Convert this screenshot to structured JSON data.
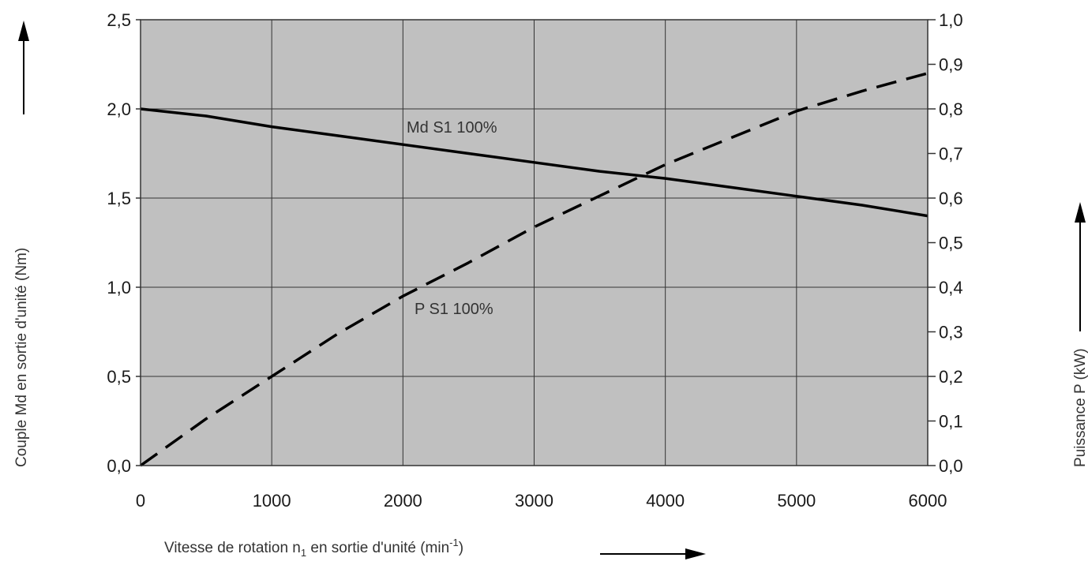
{
  "colors": {
    "plot_background": "#c0c0c0",
    "grid": "#333333",
    "series": "#000000",
    "text": "#1a1a1a"
  },
  "chart_data": {
    "type": "line",
    "x": [
      0,
      500,
      1000,
      1500,
      2000,
      2500,
      3000,
      3500,
      4000,
      4500,
      5000,
      5500,
      6000
    ],
    "xlim": [
      0,
      6000
    ],
    "x_ticks": [
      "0",
      "1000",
      "2000",
      "3000",
      "4000",
      "5000",
      "6000"
    ],
    "ylim_left": [
      0,
      2.5
    ],
    "y_ticks_left": [
      "0,0",
      "0,5",
      "1,0",
      "1,5",
      "2,0",
      "2,5"
    ],
    "ylim_right": [
      0,
      1.0
    ],
    "y_ticks_right": [
      "0,0",
      "0,1",
      "0,2",
      "0,3",
      "0,4",
      "0,5",
      "0,6",
      "0,7",
      "0,8",
      "0,9",
      "1,0"
    ],
    "xlabel": {
      "prefix": "Vitesse de rotation n",
      "sub": "1",
      "middle": " en sortie d'unité (min",
      "sup": "-1",
      "suffix": ")"
    },
    "ylabel_left": "Couple Md en sortie d'unité (Nm)",
    "ylabel_right": "Puissance P (kW)",
    "grid": true,
    "series": [
      {
        "name": "Md S1 100%",
        "axis": "left",
        "style": "solid",
        "values": [
          2.0,
          1.96,
          1.9,
          1.85,
          1.8,
          1.75,
          1.7,
          1.65,
          1.61,
          1.56,
          1.51,
          1.46,
          1.4
        ]
      },
      {
        "name": "P S1 100%",
        "axis": "right",
        "style": "dashed",
        "values": [
          0.0,
          0.105,
          0.2,
          0.295,
          0.38,
          0.455,
          0.535,
          0.605,
          0.675,
          0.735,
          0.795,
          0.84,
          0.88
        ]
      }
    ]
  }
}
